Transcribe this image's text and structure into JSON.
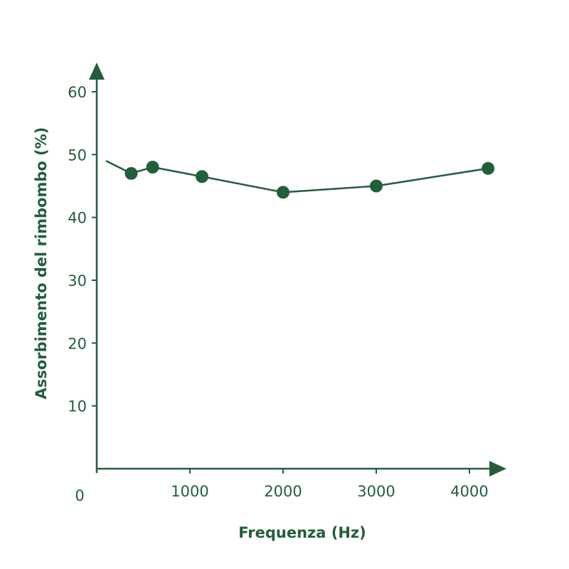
{
  "colors": {
    "main": "#235e3b",
    "background": "#ffffff"
  },
  "chart_data": {
    "type": "line",
    "title": "",
    "xlabel": "Frequenza (Hz)",
    "ylabel": "Assorbimento del rimbombo (%)",
    "origin_label": "0",
    "xlim": [
      0,
      4200
    ],
    "ylim": [
      0,
      60
    ],
    "xticks": [
      1000,
      2000,
      3000,
      4000
    ],
    "xtick_labels": [
      "1000",
      "2000",
      "3000",
      "4000"
    ],
    "yticks": [
      10,
      20,
      30,
      40,
      50,
      60
    ],
    "ytick_labels": [
      "10",
      "20",
      "30",
      "40",
      "50",
      "60"
    ],
    "grid": false,
    "line_start": {
      "x": 100,
      "y": 49
    },
    "series": [
      {
        "x": [
          370,
          600,
          1130,
          2000,
          3000,
          4200
        ],
        "y": [
          47,
          48,
          46.5,
          44,
          45,
          47.8
        ]
      }
    ]
  }
}
